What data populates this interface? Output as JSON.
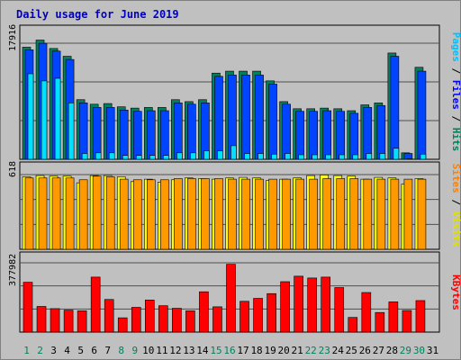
{
  "chart_data": {
    "type": "bar",
    "title": "Daily usage for June 2019",
    "categories": [
      "1",
      "2",
      "3",
      "4",
      "5",
      "6",
      "7",
      "8",
      "9",
      "10",
      "11",
      "12",
      "13",
      "14",
      "15",
      "16",
      "17",
      "18",
      "19",
      "20",
      "21",
      "22",
      "23",
      "24",
      "25",
      "26",
      "27",
      "28",
      "29",
      "30",
      "31"
    ],
    "weekend_days": [
      "1",
      "2",
      "8",
      "9",
      "15",
      "16",
      "22",
      "23",
      "29",
      "30"
    ],
    "panels": [
      {
        "id": "hits-files-pages",
        "ymax_label": "17916",
        "ymax": 17916,
        "legend": [
          {
            "text": "Hits",
            "color": "#00805c"
          },
          {
            "text": "Files",
            "color": "#0000ff"
          },
          {
            "text": "Pages",
            "color": "#00c0ff"
          }
        ],
        "series": [
          {
            "name": "Hits",
            "color": "#00805c",
            "values": [
              17300,
              18400,
              17100,
              15900,
              9200,
              8500,
              8600,
              8100,
              7900,
              8000,
              8000,
              9200,
              8900,
              9200,
              13300,
              13600,
              13600,
              13600,
              12100,
              8900,
              7800,
              7800,
              7900,
              7800,
              7500,
              8400,
              8700,
              16400,
              1000,
              14200,
              0
            ]
          },
          {
            "name": "Files",
            "color": "#0044ff",
            "values": [
              16900,
              17900,
              16700,
              15400,
              8700,
              8000,
              8000,
              7600,
              7400,
              7500,
              7500,
              8700,
              8500,
              8700,
              12800,
              13000,
              13000,
              13000,
              11600,
              8500,
              7400,
              7400,
              7500,
              7400,
              7100,
              8000,
              8300,
              15900,
              900,
              13600,
              0
            ]
          },
          {
            "name": "Pages",
            "color": "#00e0ff",
            "values": [
              13200,
              12100,
              12500,
              8700,
              900,
              1000,
              1000,
              600,
              600,
              600,
              600,
              1000,
              1000,
              1300,
              1300,
              2100,
              900,
              900,
              800,
              900,
              700,
              700,
              700,
              700,
              700,
              900,
              900,
              1700,
              100,
              800,
              0
            ]
          }
        ]
      },
      {
        "id": "visits-sites",
        "ymax_label": "618",
        "ymax": 618,
        "legend": [
          {
            "text": "Visits",
            "color": "#e0e000"
          },
          {
            "text": "Sites",
            "color": "#ff8000"
          }
        ],
        "series": [
          {
            "name": "Visits",
            "color": "#ffff00",
            "values": [
              600,
              610,
              605,
              605,
              550,
              610,
              610,
              600,
              560,
              580,
              555,
              575,
              590,
              585,
              580,
              590,
              595,
              590,
              570,
              580,
              590,
              610,
              615,
              610,
              605,
              580,
              595,
              590,
              540,
              585,
              0
            ]
          },
          {
            "name": "Sites",
            "color": "#ff9900",
            "values": [
              590,
              590,
              590,
              590,
              575,
              605,
              600,
              580,
              575,
              575,
              575,
              585,
              585,
              585,
              585,
              580,
              580,
              580,
              580,
              580,
              580,
              580,
              585,
              585,
              585,
              580,
              580,
              580,
              580,
              580,
              0
            ]
          }
        ]
      },
      {
        "id": "kbytes",
        "ymax_label": "377982",
        "ymax": 377982,
        "legend": [
          {
            "text": "KBytes",
            "color": "#ff0000"
          }
        ],
        "series": [
          {
            "name": "KBytes",
            "color": "#ff0000",
            "values": [
              272000,
              140000,
              128000,
              120000,
              116000,
              300000,
              178000,
              78000,
              135000,
              175000,
              144000,
              130000,
              116000,
              220000,
              138000,
              370000,
              168000,
              184000,
              210000,
              275000,
              305000,
              295000,
              300000,
              243000,
              80000,
              216000,
              107000,
              165000,
              118000,
              172000,
              0
            ]
          }
        ]
      }
    ]
  }
}
